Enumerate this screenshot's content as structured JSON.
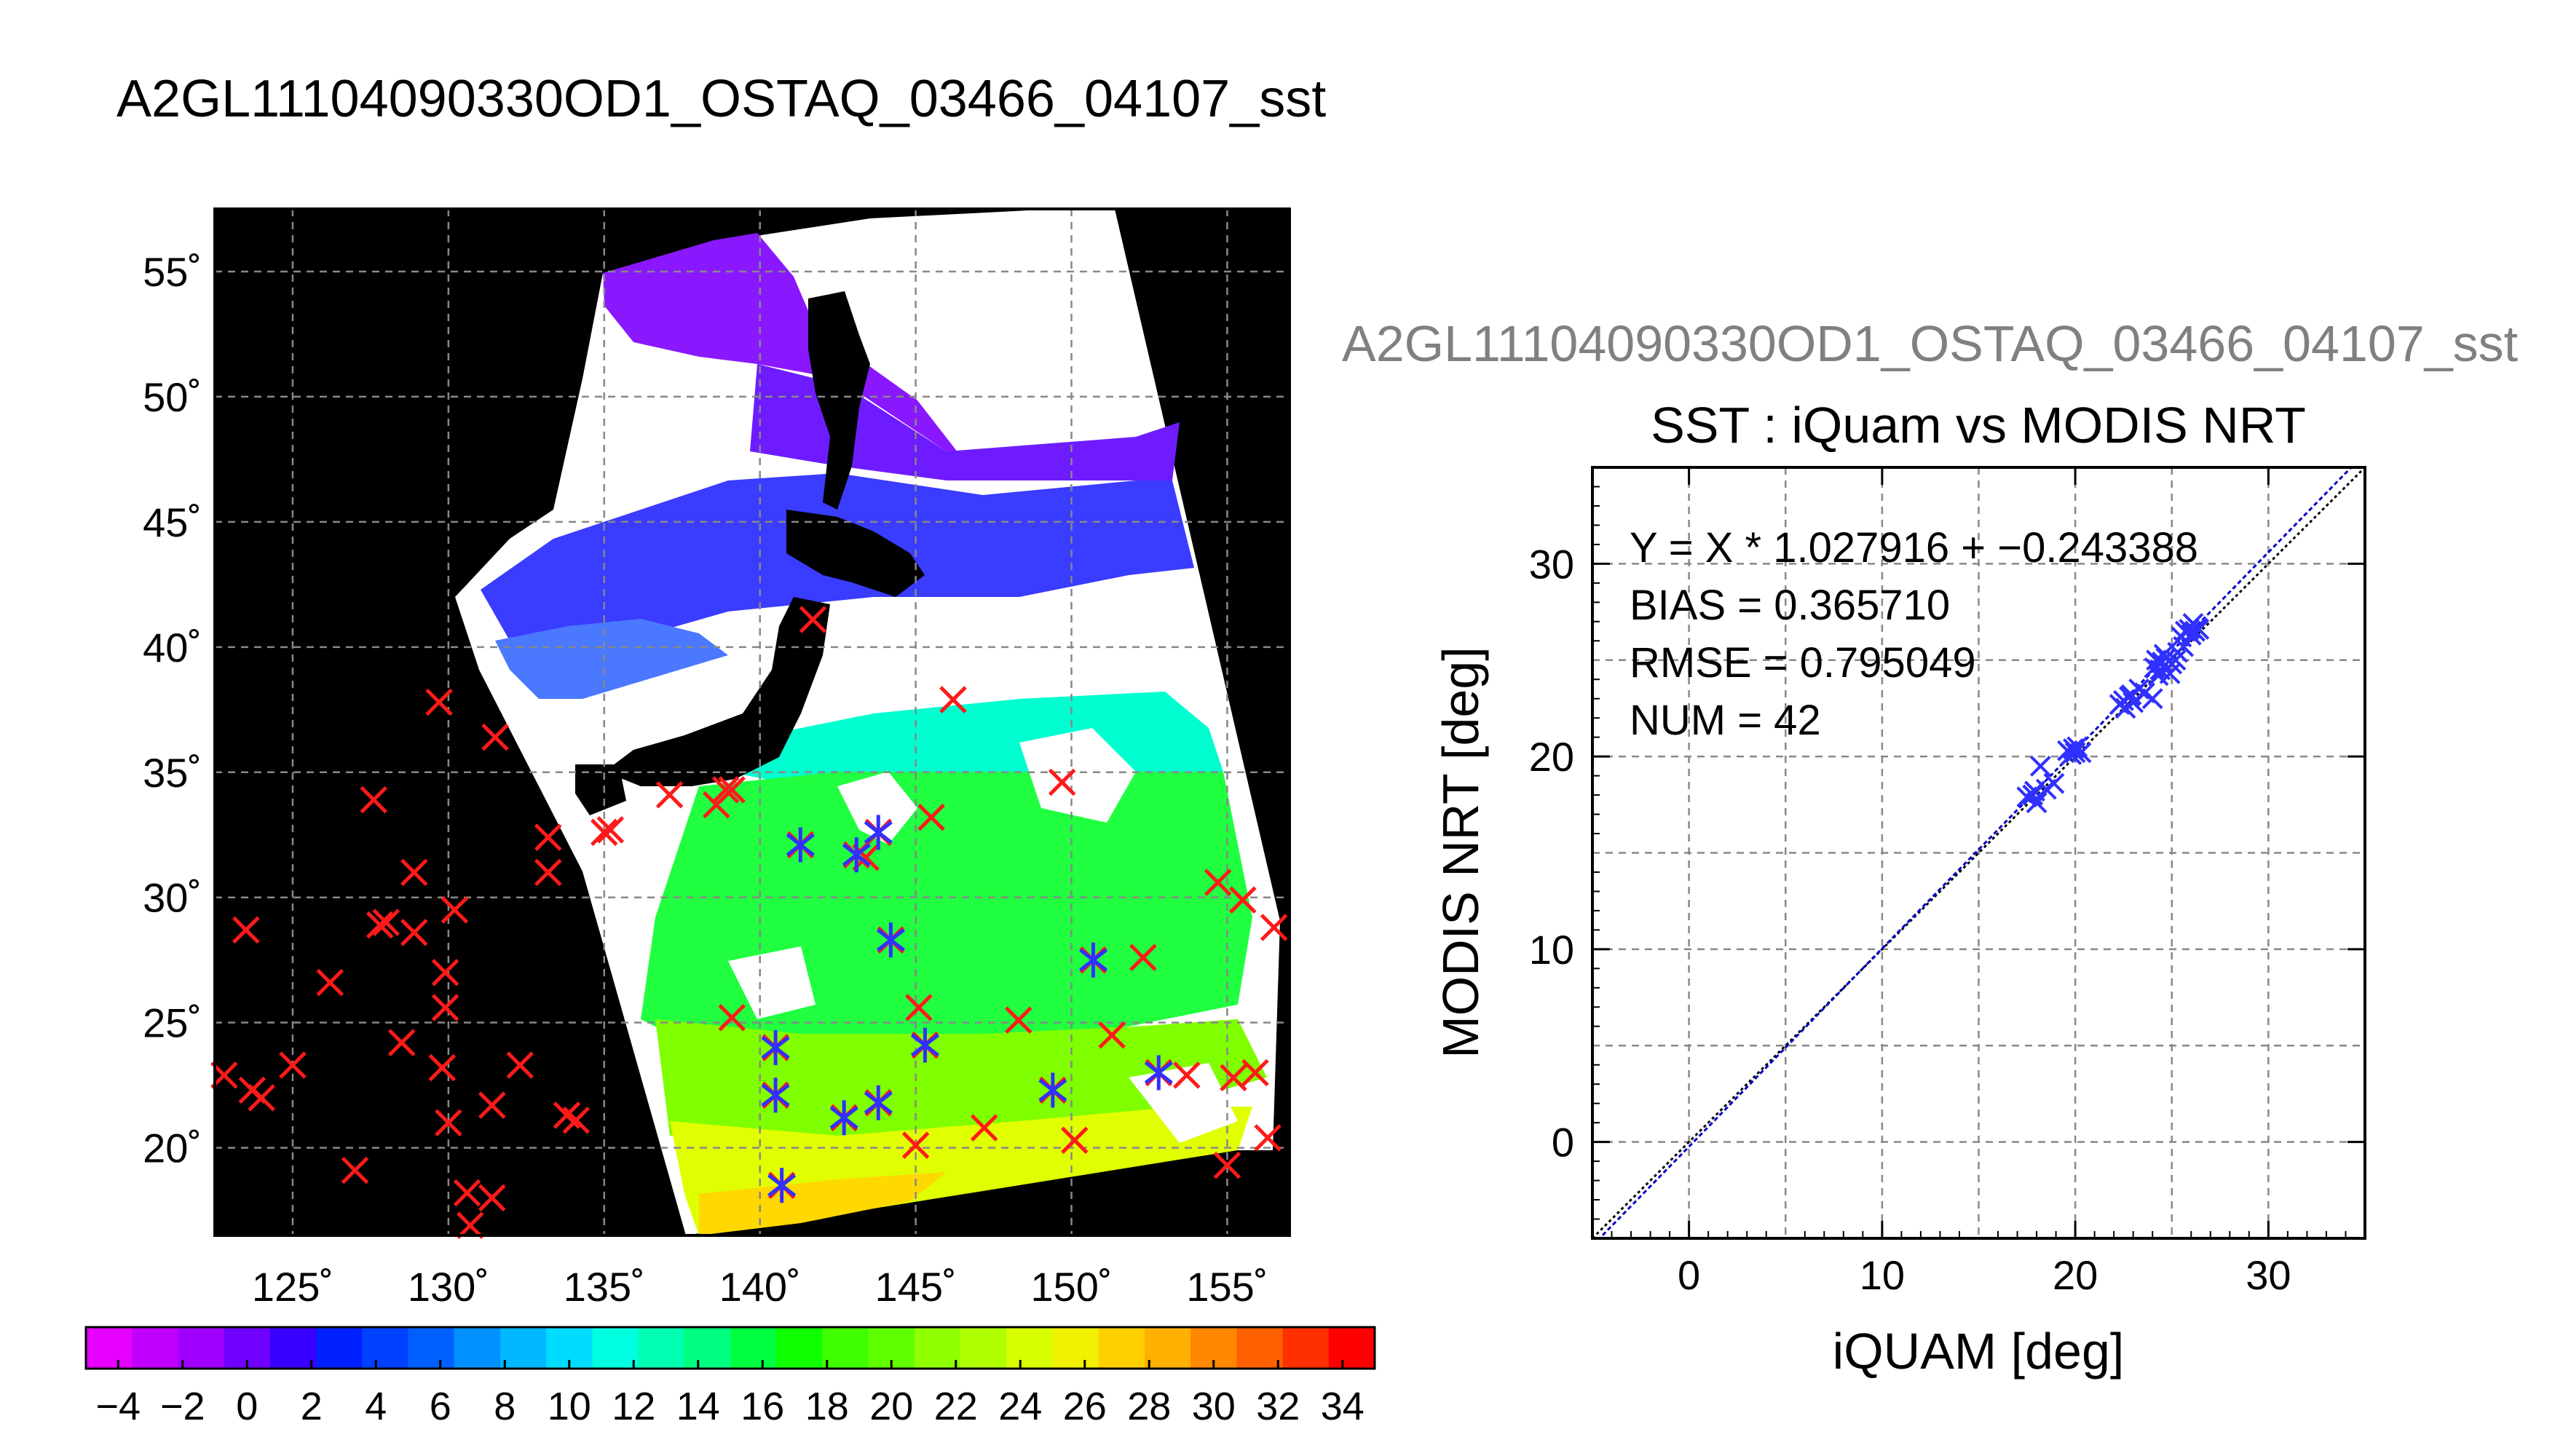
{
  "page": {
    "title": "A2GL11104090330OD1_OSTAQ_03466_04107_sst",
    "scatter_filename": "A2GL11104090330OD1_OSTAQ_03466_04107_sst"
  },
  "colors": {
    "map_background": "#000000",
    "land": "#000000",
    "cloud": "#ffffff",
    "iquam_marker": "#ff1a1a",
    "match_marker": "#3030ff",
    "fit_line": "#0000cc",
    "one_to_one_line": "#000000"
  },
  "chart_data": [
    {
      "type": "heatmap",
      "description_map": "SST swath map with in-situ markers",
      "lon_ticks": [
        125,
        130,
        135,
        140,
        145,
        150,
        155
      ],
      "lon_tick_labels": [
        "125˚",
        "130˚",
        "135˚",
        "140˚",
        "145˚",
        "150˚",
        "155˚"
      ],
      "lat_ticks": [
        20,
        25,
        30,
        35,
        40,
        45,
        50,
        55
      ],
      "lat_tick_labels": [
        "20˚",
        "25˚",
        "30˚",
        "35˚",
        "40˚",
        "45˚",
        "50˚",
        "55˚"
      ],
      "xlim": [
        122.5,
        157
      ],
      "ylim": [
        16.5,
        57.5
      ],
      "grid": true,
      "iquam_points": [
        [
          122.8,
          22.9
        ],
        [
          123.5,
          28.7
        ],
        [
          123.7,
          22.3
        ],
        [
          124.0,
          22.0
        ],
        [
          125.0,
          23.3
        ],
        [
          126.2,
          26.6
        ],
        [
          127.0,
          19.1
        ],
        [
          127.6,
          33.9
        ],
        [
          127.8,
          28.9
        ],
        [
          128.0,
          29.0
        ],
        [
          128.5,
          24.2
        ],
        [
          128.9,
          31.0
        ],
        [
          128.9,
          28.6
        ],
        [
          129.7,
          37.8
        ],
        [
          129.8,
          23.2
        ],
        [
          129.9,
          27.0
        ],
        [
          129.9,
          25.6
        ],
        [
          130.0,
          21.0
        ],
        [
          130.2,
          29.5
        ],
        [
          130.6,
          18.2
        ],
        [
          130.7,
          16.9
        ],
        [
          131.4,
          21.7
        ],
        [
          131.5,
          36.4
        ],
        [
          131.4,
          18.0
        ],
        [
          132.3,
          23.3
        ],
        [
          133.2,
          32.4
        ],
        [
          133.2,
          31.0
        ],
        [
          133.8,
          21.3
        ],
        [
          134.1,
          21.1
        ],
        [
          135.0,
          32.6
        ],
        [
          135.2,
          32.7
        ],
        [
          137.1,
          34.1
        ],
        [
          138.6,
          33.7
        ],
        [
          138.9,
          34.3
        ],
        [
          139.1,
          34.3
        ],
        [
          139.1,
          25.2
        ],
        [
          140.5,
          24.0
        ],
        [
          140.5,
          22.1
        ],
        [
          140.7,
          18.5
        ],
        [
          141.3,
          32.1
        ],
        [
          141.7,
          41.1
        ],
        [
          142.7,
          21.2
        ],
        [
          143.1,
          31.7
        ],
        [
          143.4,
          31.6
        ],
        [
          143.8,
          21.8
        ],
        [
          143.8,
          32.6
        ],
        [
          144.2,
          28.3
        ],
        [
          145.0,
          20.1
        ],
        [
          145.1,
          25.6
        ],
        [
          145.3,
          24.1
        ],
        [
          145.5,
          33.2
        ],
        [
          146.2,
          37.9
        ],
        [
          147.2,
          20.8
        ],
        [
          148.3,
          25.1
        ],
        [
          149.4,
          22.3
        ],
        [
          149.7,
          34.6
        ],
        [
          150.1,
          20.3
        ],
        [
          150.7,
          27.5
        ],
        [
          151.3,
          24.5
        ],
        [
          152.3,
          27.6
        ],
        [
          152.8,
          23.0
        ],
        [
          153.7,
          22.9
        ],
        [
          154.7,
          30.6
        ],
        [
          155.0,
          19.3
        ],
        [
          155.2,
          22.8
        ],
        [
          155.5,
          29.9
        ],
        [
          155.9,
          23.0
        ],
        [
          156.3,
          20.4
        ],
        [
          156.5,
          28.8
        ]
      ],
      "matched_points": [
        [
          140.5,
          24.0
        ],
        [
          140.5,
          22.1
        ],
        [
          140.7,
          18.5
        ],
        [
          141.3,
          32.1
        ],
        [
          142.7,
          21.2
        ],
        [
          143.1,
          31.7
        ],
        [
          143.8,
          21.8
        ],
        [
          143.8,
          32.6
        ],
        [
          144.2,
          28.3
        ],
        [
          145.3,
          24.1
        ],
        [
          149.4,
          22.3
        ],
        [
          150.7,
          27.5
        ],
        [
          152.8,
          23.0
        ]
      ]
    },
    {
      "type": "bar",
      "description_colorbar": "SST color scale",
      "tick_labels": [
        "−4",
        "−2",
        "0",
        "2",
        "4",
        "6",
        "8",
        "10",
        "12",
        "14",
        "16",
        "18",
        "20",
        "22",
        "24",
        "26",
        "28",
        "30",
        "32",
        "34"
      ],
      "vmin": -5,
      "vmax": 35,
      "colors": [
        "#e600ff",
        "#c000ff",
        "#a000ff",
        "#7000ff",
        "#3a00ff",
        "#0020ff",
        "#0040ff",
        "#0060ff",
        "#0090ff",
        "#00b8ff",
        "#00dcff",
        "#00ffe0",
        "#00ffb0",
        "#00ff80",
        "#00ff40",
        "#10ff00",
        "#40ff00",
        "#60ff00",
        "#90ff00",
        "#b0ff00",
        "#d8ff00",
        "#f0f000",
        "#ffd000",
        "#ffb000",
        "#ff8800",
        "#ff6000",
        "#ff3000",
        "#ff0000"
      ]
    },
    {
      "type": "scatter",
      "title": "SST : iQuam vs MODIS NRT",
      "xlabel": "iQUAM [deg]",
      "ylabel": "MODIS NRT [deg]",
      "xlim": [
        -5,
        35
      ],
      "ylim": [
        -5,
        35
      ],
      "xticks": [
        0,
        10,
        20,
        30
      ],
      "yticks": [
        0,
        10,
        20,
        30
      ],
      "grid": true,
      "stats": [
        "Y = X * 1.027916 + −0.243388",
        "BIAS = 0.365710",
        "RMSE = 0.795049",
        "NUM = 42"
      ],
      "fit": {
        "slope": 1.027916,
        "intercept": -0.243388
      },
      "points": [
        [
          17.5,
          17.9
        ],
        [
          17.8,
          18.0
        ],
        [
          18.0,
          17.6
        ],
        [
          18.2,
          19.5
        ],
        [
          18.5,
          18.3
        ],
        [
          18.9,
          18.6
        ],
        [
          19.6,
          20.3
        ],
        [
          19.9,
          20.4
        ],
        [
          20.0,
          20.2
        ],
        [
          20.1,
          20.5
        ],
        [
          20.3,
          20.2
        ],
        [
          22.3,
          22.7
        ],
        [
          22.5,
          22.9
        ],
        [
          22.6,
          22.5
        ],
        [
          22.8,
          23.1
        ],
        [
          23.0,
          22.8
        ],
        [
          23.3,
          23.5
        ],
        [
          23.6,
          23.3
        ],
        [
          24.0,
          23.0
        ],
        [
          24.1,
          24.6
        ],
        [
          24.2,
          25.0
        ],
        [
          24.4,
          24.5
        ],
        [
          24.5,
          24.9
        ],
        [
          24.7,
          25.1
        ],
        [
          24.9,
          24.3
        ],
        [
          25.0,
          24.8
        ],
        [
          25.3,
          25.4
        ],
        [
          25.5,
          26.2
        ],
        [
          25.6,
          25.7
        ],
        [
          25.7,
          26.5
        ],
        [
          25.9,
          26.6
        ],
        [
          26.0,
          26.3
        ],
        [
          26.1,
          26.9
        ],
        [
          26.2,
          26.5
        ],
        [
          26.3,
          26.7
        ],
        [
          24.3,
          24.2
        ],
        [
          24.6,
          25.3
        ],
        [
          25.2,
          25.0
        ],
        [
          19.8,
          20.1
        ],
        [
          22.9,
          23.2
        ],
        [
          17.9,
          18.2
        ],
        [
          26.4,
          26.6
        ]
      ]
    }
  ]
}
